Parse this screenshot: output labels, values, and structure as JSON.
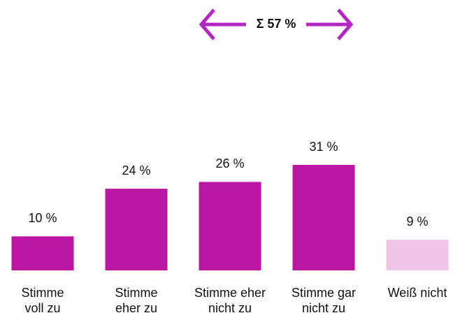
{
  "chart_data": {
    "type": "bar",
    "categories": [
      "Stimme\nvoll zu",
      "Stimme\neher zu",
      "Stimme eher\nnicht zu",
      "Stimme gar\nnicht zu",
      "Weiß nicht"
    ],
    "values": [
      10,
      24,
      26,
      31,
      9
    ],
    "value_labels": [
      "10 %",
      "24 %",
      "26 %",
      "31 %",
      "9 %"
    ],
    "colors": [
      "#bb16a3",
      "#bb16a3",
      "#bb16a3",
      "#bb16a3",
      "#efc4e8"
    ],
    "annotation": "Σ 57 %"
  }
}
